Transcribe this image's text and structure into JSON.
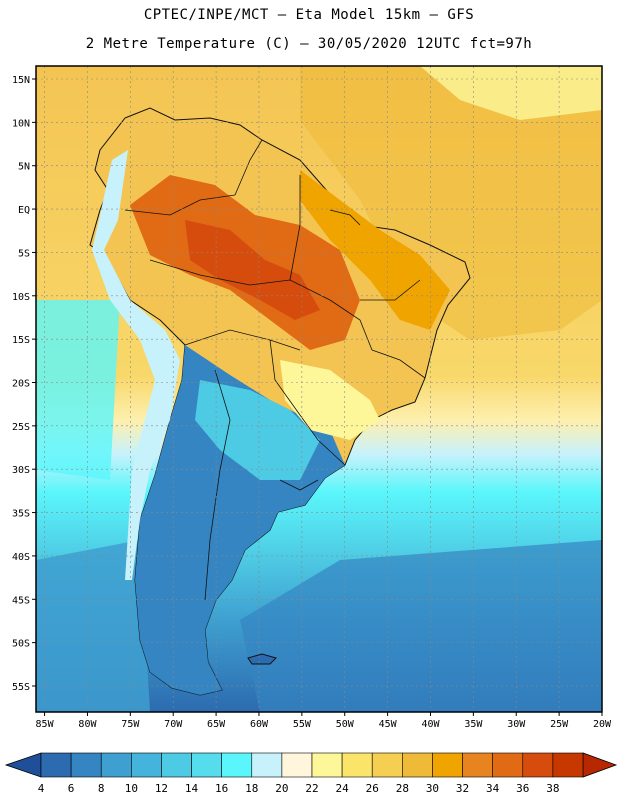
{
  "header": {
    "line1": "CPTEC/INPE/MCT –  Eta Model 15km – GFS",
    "line2": "2 Metre Temperature (C) – 30/05/2020 12UTC fct=97h"
  },
  "map": {
    "region": "South America",
    "lat_labels": [
      "15N",
      "10N",
      "5N",
      "EQ",
      "5S",
      "10S",
      "15S",
      "20S",
      "25S",
      "30S",
      "35S",
      "40S",
      "45S",
      "50S",
      "55S"
    ],
    "lat_values": [
      15,
      10,
      5,
      0,
      -5,
      -10,
      -15,
      -20,
      -25,
      -30,
      -35,
      -40,
      -45,
      -50,
      -55
    ],
    "lon_labels": [
      "85W",
      "80W",
      "75W",
      "70W",
      "65W",
      "60W",
      "55W",
      "50W",
      "45W",
      "40W",
      "35W",
      "30W",
      "25W",
      "20W"
    ],
    "lon_values": [
      -85,
      -80,
      -75,
      -70,
      -65,
      -60,
      -55,
      -50,
      -45,
      -40,
      -35,
      -30,
      -25,
      -20
    ],
    "lon_range": [
      -86,
      -20
    ],
    "lat_range": [
      -58,
      16.5
    ]
  },
  "colorbar": {
    "labels": [
      "4",
      "6",
      "8",
      "10",
      "12",
      "14",
      "16",
      "18",
      "20",
      "22",
      "24",
      "26",
      "28",
      "30",
      "32",
      "34",
      "36",
      "38"
    ],
    "colors": [
      "#2c6bb0",
      "#3585c2",
      "#3e9fd0",
      "#45b4dc",
      "#4ecbe4",
      "#55dded",
      "#5af6fb",
      "#c8f2fb",
      "#fff6dc",
      "#fdf79a",
      "#fbe46a",
      "#f5cf52",
      "#efba38",
      "#f0a400",
      "#e88420",
      "#e06b14",
      "#d64c0c",
      "#c63800"
    ],
    "low_arrow_color": "#1f4f99",
    "high_arrow_color": "#b82800"
  }
}
